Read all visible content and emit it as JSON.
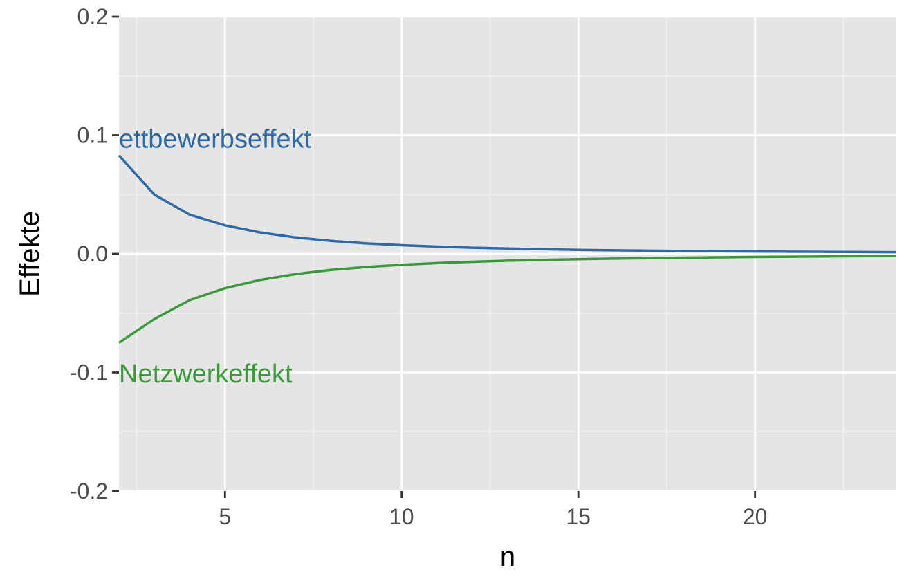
{
  "chart_data": {
    "type": "line",
    "xlabel": "n",
    "ylabel": "Effekte",
    "xlim": [
      2,
      24
    ],
    "ylim": [
      -0.2,
      0.2
    ],
    "x_ticks": [
      5,
      10,
      15,
      20
    ],
    "x_tick_labels": [
      "5",
      "10",
      "15",
      "20"
    ],
    "y_ticks": [
      -0.2,
      -0.1,
      0.0,
      0.1,
      0.2
    ],
    "y_tick_labels": [
      "-0.2",
      "-0.1",
      "0.0",
      "0.1",
      "0.2"
    ],
    "grid": true,
    "x": [
      2,
      3,
      4,
      5,
      6,
      7,
      8,
      9,
      10,
      11,
      12,
      13,
      14,
      15,
      16,
      17,
      18,
      19,
      20,
      21,
      22,
      23,
      24
    ],
    "series": [
      {
        "key": "wettbewerb",
        "color": "#2e6aa8",
        "values": [
          0.083,
          0.05,
          0.033,
          0.024,
          0.018,
          0.0138,
          0.0109,
          0.0088,
          0.0073,
          0.0061,
          0.0052,
          0.0045,
          0.0039,
          0.0034,
          0.003,
          0.0027,
          0.0024,
          0.0022,
          0.002,
          0.0018,
          0.0017,
          0.0015,
          0.0014
        ]
      },
      {
        "key": "netzwerk",
        "color": "#3a9a3a",
        "values": [
          -0.075,
          -0.055,
          -0.039,
          -0.029,
          -0.022,
          -0.0171,
          -0.0136,
          -0.0111,
          -0.0093,
          -0.0078,
          -0.0067,
          -0.0058,
          -0.0051,
          -0.0045,
          -0.004,
          -0.0036,
          -0.0032,
          -0.0029,
          -0.0026,
          -0.0024,
          -0.0022,
          -0.002,
          -0.0019
        ]
      }
    ],
    "annotations": [
      {
        "text": "ettbewerbseffekt",
        "x": 2,
        "y": 0.097,
        "color": "#2e6aa8"
      },
      {
        "text": "Netzwerkeffekt",
        "x": 2,
        "y": -0.101,
        "color": "#3a9a3a"
      }
    ]
  }
}
